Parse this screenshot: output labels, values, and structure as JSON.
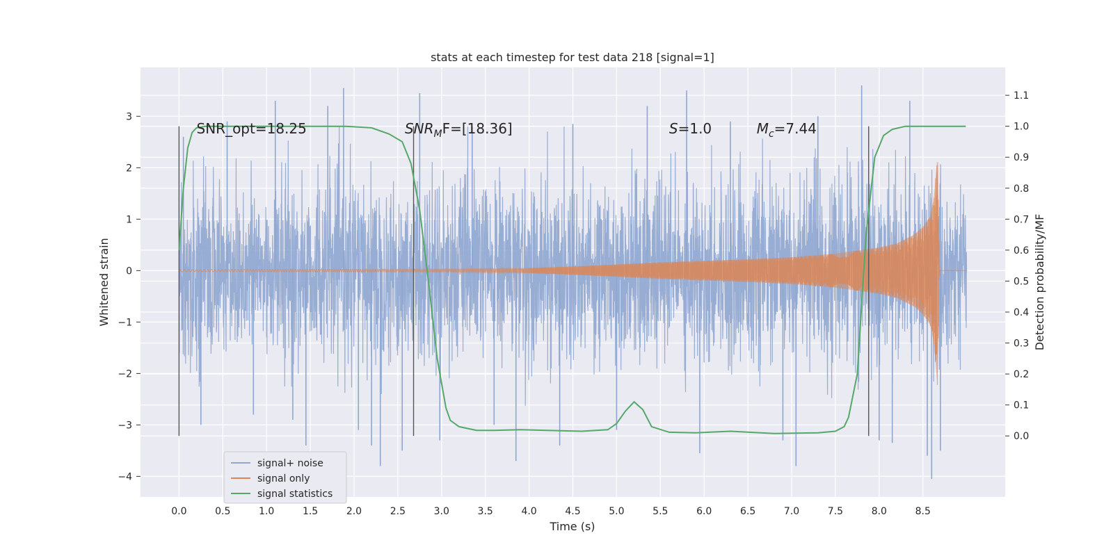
{
  "chart_data": {
    "type": "line",
    "title": "stats at each timestep for test data 218 [signal=1]",
    "xlabel": "Time (s)",
    "ylabel": "Whitened strain",
    "y2label": "Detection probability/MF",
    "xlim": [
      -0.44,
      9.44
    ],
    "ylim": [
      -4.4,
      3.95
    ],
    "y2lim": [
      -0.197,
      1.19
    ],
    "xticks": [
      "0.0",
      "0.5",
      "1.0",
      "1.5",
      "2.0",
      "2.5",
      "3.0",
      "3.5",
      "4.0",
      "4.5",
      "5.0",
      "5.5",
      "6.0",
      "6.5",
      "7.0",
      "7.5",
      "8.0",
      "8.5"
    ],
    "yticks": [
      "−4",
      "−3",
      "−2",
      "−1",
      "0",
      "1",
      "2",
      "3"
    ],
    "y2ticks": [
      "0.0",
      "0.1",
      "0.2",
      "0.3",
      "0.4",
      "0.5",
      "0.6",
      "0.7",
      "0.8",
      "0.9",
      "1.0",
      "1.1"
    ],
    "legend_position": "lower-left",
    "colors": {
      "noise": "#8fa6cf",
      "signal": "#dd8452",
      "stats": "#55a868",
      "vline": "#555555",
      "bg": "#eaeaf2",
      "grid": "#ffffff"
    },
    "noise_band": {
      "t_start": 0.0,
      "t_end": 9.0,
      "amplitude": 1.0
    },
    "noise_spikes": [
      {
        "t": 0.05,
        "v": 2.6
      },
      {
        "t": 0.25,
        "v": -3.0
      },
      {
        "t": 0.55,
        "v": 2.9
      },
      {
        "t": 0.85,
        "v": -2.8
      },
      {
        "t": 1.1,
        "v": 3.3
      },
      {
        "t": 1.3,
        "v": -2.9
      },
      {
        "t": 1.45,
        "v": -3.4
      },
      {
        "t": 1.7,
        "v": 3.2
      },
      {
        "t": 1.88,
        "v": 3.55
      },
      {
        "t": 2.05,
        "v": -3.1
      },
      {
        "t": 2.2,
        "v": -3.4
      },
      {
        "t": 2.3,
        "v": -3.8
      },
      {
        "t": 2.55,
        "v": -3.5
      },
      {
        "t": 2.75,
        "v": 3.45
      },
      {
        "t": 2.98,
        "v": -3.3
      },
      {
        "t": 3.35,
        "v": 2.8
      },
      {
        "t": 3.6,
        "v": -3.0
      },
      {
        "t": 3.85,
        "v": -3.7
      },
      {
        "t": 4.35,
        "v": -3.4
      },
      {
        "t": 4.5,
        "v": 2.85
      },
      {
        "t": 5.0,
        "v": -3.1
      },
      {
        "t": 5.35,
        "v": 3.2
      },
      {
        "t": 5.8,
        "v": 3.5
      },
      {
        "t": 5.95,
        "v": -3.55
      },
      {
        "t": 6.3,
        "v": 2.9
      },
      {
        "t": 6.9,
        "v": -3.3
      },
      {
        "t": 7.05,
        "v": -3.8
      },
      {
        "t": 7.3,
        "v": 3.0
      },
      {
        "t": 7.8,
        "v": 3.6
      },
      {
        "t": 8.0,
        "v": -3.3
      },
      {
        "t": 8.15,
        "v": -3.35
      },
      {
        "t": 8.35,
        "v": 3.3
      },
      {
        "t": 8.55,
        "v": -3.6
      },
      {
        "t": 8.6,
        "v": -4.05
      },
      {
        "t": 8.7,
        "v": -3.5
      }
    ],
    "signal_envelope": [
      {
        "t": 0.0,
        "a": 0.02
      },
      {
        "t": 3.0,
        "a": 0.03
      },
      {
        "t": 4.0,
        "a": 0.05
      },
      {
        "t": 4.5,
        "a": 0.08
      },
      {
        "t": 5.0,
        "a": 0.12
      },
      {
        "t": 5.5,
        "a": 0.16
      },
      {
        "t": 6.0,
        "a": 0.19
      },
      {
        "t": 6.5,
        "a": 0.22
      },
      {
        "t": 7.0,
        "a": 0.26
      },
      {
        "t": 7.5,
        "a": 0.33
      },
      {
        "t": 8.0,
        "a": 0.45
      },
      {
        "t": 8.2,
        "a": 0.53
      },
      {
        "t": 8.4,
        "a": 0.7
      },
      {
        "t": 8.5,
        "a": 0.85
      },
      {
        "t": 8.58,
        "a": 1.05
      },
      {
        "t": 8.62,
        "a": 1.35
      },
      {
        "t": 8.65,
        "a": 1.9
      },
      {
        "t": 8.67,
        "a": 2.35
      },
      {
        "t": 8.69,
        "a": 0.0
      },
      {
        "t": 9.0,
        "a": 0.0
      }
    ],
    "signal_stats": {
      "t": [
        0.0,
        0.05,
        0.1,
        0.15,
        0.2,
        0.3,
        0.5,
        1.0,
        1.5,
        1.9,
        2.2,
        2.4,
        2.55,
        2.65,
        2.75,
        2.85,
        2.95,
        3.05,
        3.1,
        3.2,
        3.4,
        3.6,
        3.9,
        4.2,
        4.6,
        4.9,
        5.0,
        5.1,
        5.2,
        5.3,
        5.4,
        5.6,
        5.9,
        6.3,
        6.8,
        7.3,
        7.5,
        7.6,
        7.65,
        7.75,
        7.85,
        7.95,
        8.05,
        8.15,
        8.3,
        8.6,
        8.9,
        8.99
      ],
      "p": [
        0.6,
        0.8,
        0.93,
        0.98,
        0.995,
        1.0,
        1.0,
        1.0,
        1.0,
        1.0,
        0.995,
        0.975,
        0.95,
        0.88,
        0.73,
        0.5,
        0.25,
        0.09,
        0.05,
        0.03,
        0.018,
        0.018,
        0.02,
        0.018,
        0.015,
        0.02,
        0.04,
        0.08,
        0.11,
        0.085,
        0.03,
        0.012,
        0.01,
        0.015,
        0.008,
        0.01,
        0.015,
        0.03,
        0.06,
        0.2,
        0.65,
        0.9,
        0.97,
        0.99,
        1.0,
        1.0,
        1.0,
        1.0
      ]
    },
    "vlines": [
      {
        "t": 0.0,
        "p_low": 0.0,
        "p_high": 1.0
      },
      {
        "t": 2.68,
        "p_low": 0.0,
        "p_high": 1.0
      },
      {
        "t": 7.88,
        "p_low": 0.0,
        "p_high": 1.0
      }
    ],
    "annotations": [
      {
        "t": 0.2,
        "text": "SNR_opt=18.25"
      },
      {
        "t": 2.58,
        "text": "SNR",
        "italic_sub": "M",
        "rest": "F=[18.36]",
        "italic_main": true
      },
      {
        "t": 5.6,
        "text": "S",
        "rest": "=1.0",
        "italic_main": true
      },
      {
        "t": 6.6,
        "text": "M",
        "italic_sub": "c",
        "rest": "=7.44",
        "italic_main": true
      }
    ],
    "annotation_level_p": 0.99,
    "legend": [
      {
        "key": "noise",
        "label": "signal+ noise"
      },
      {
        "key": "signal",
        "label": "signal only"
      },
      {
        "key": "stats",
        "label": "signal statistics"
      }
    ]
  }
}
